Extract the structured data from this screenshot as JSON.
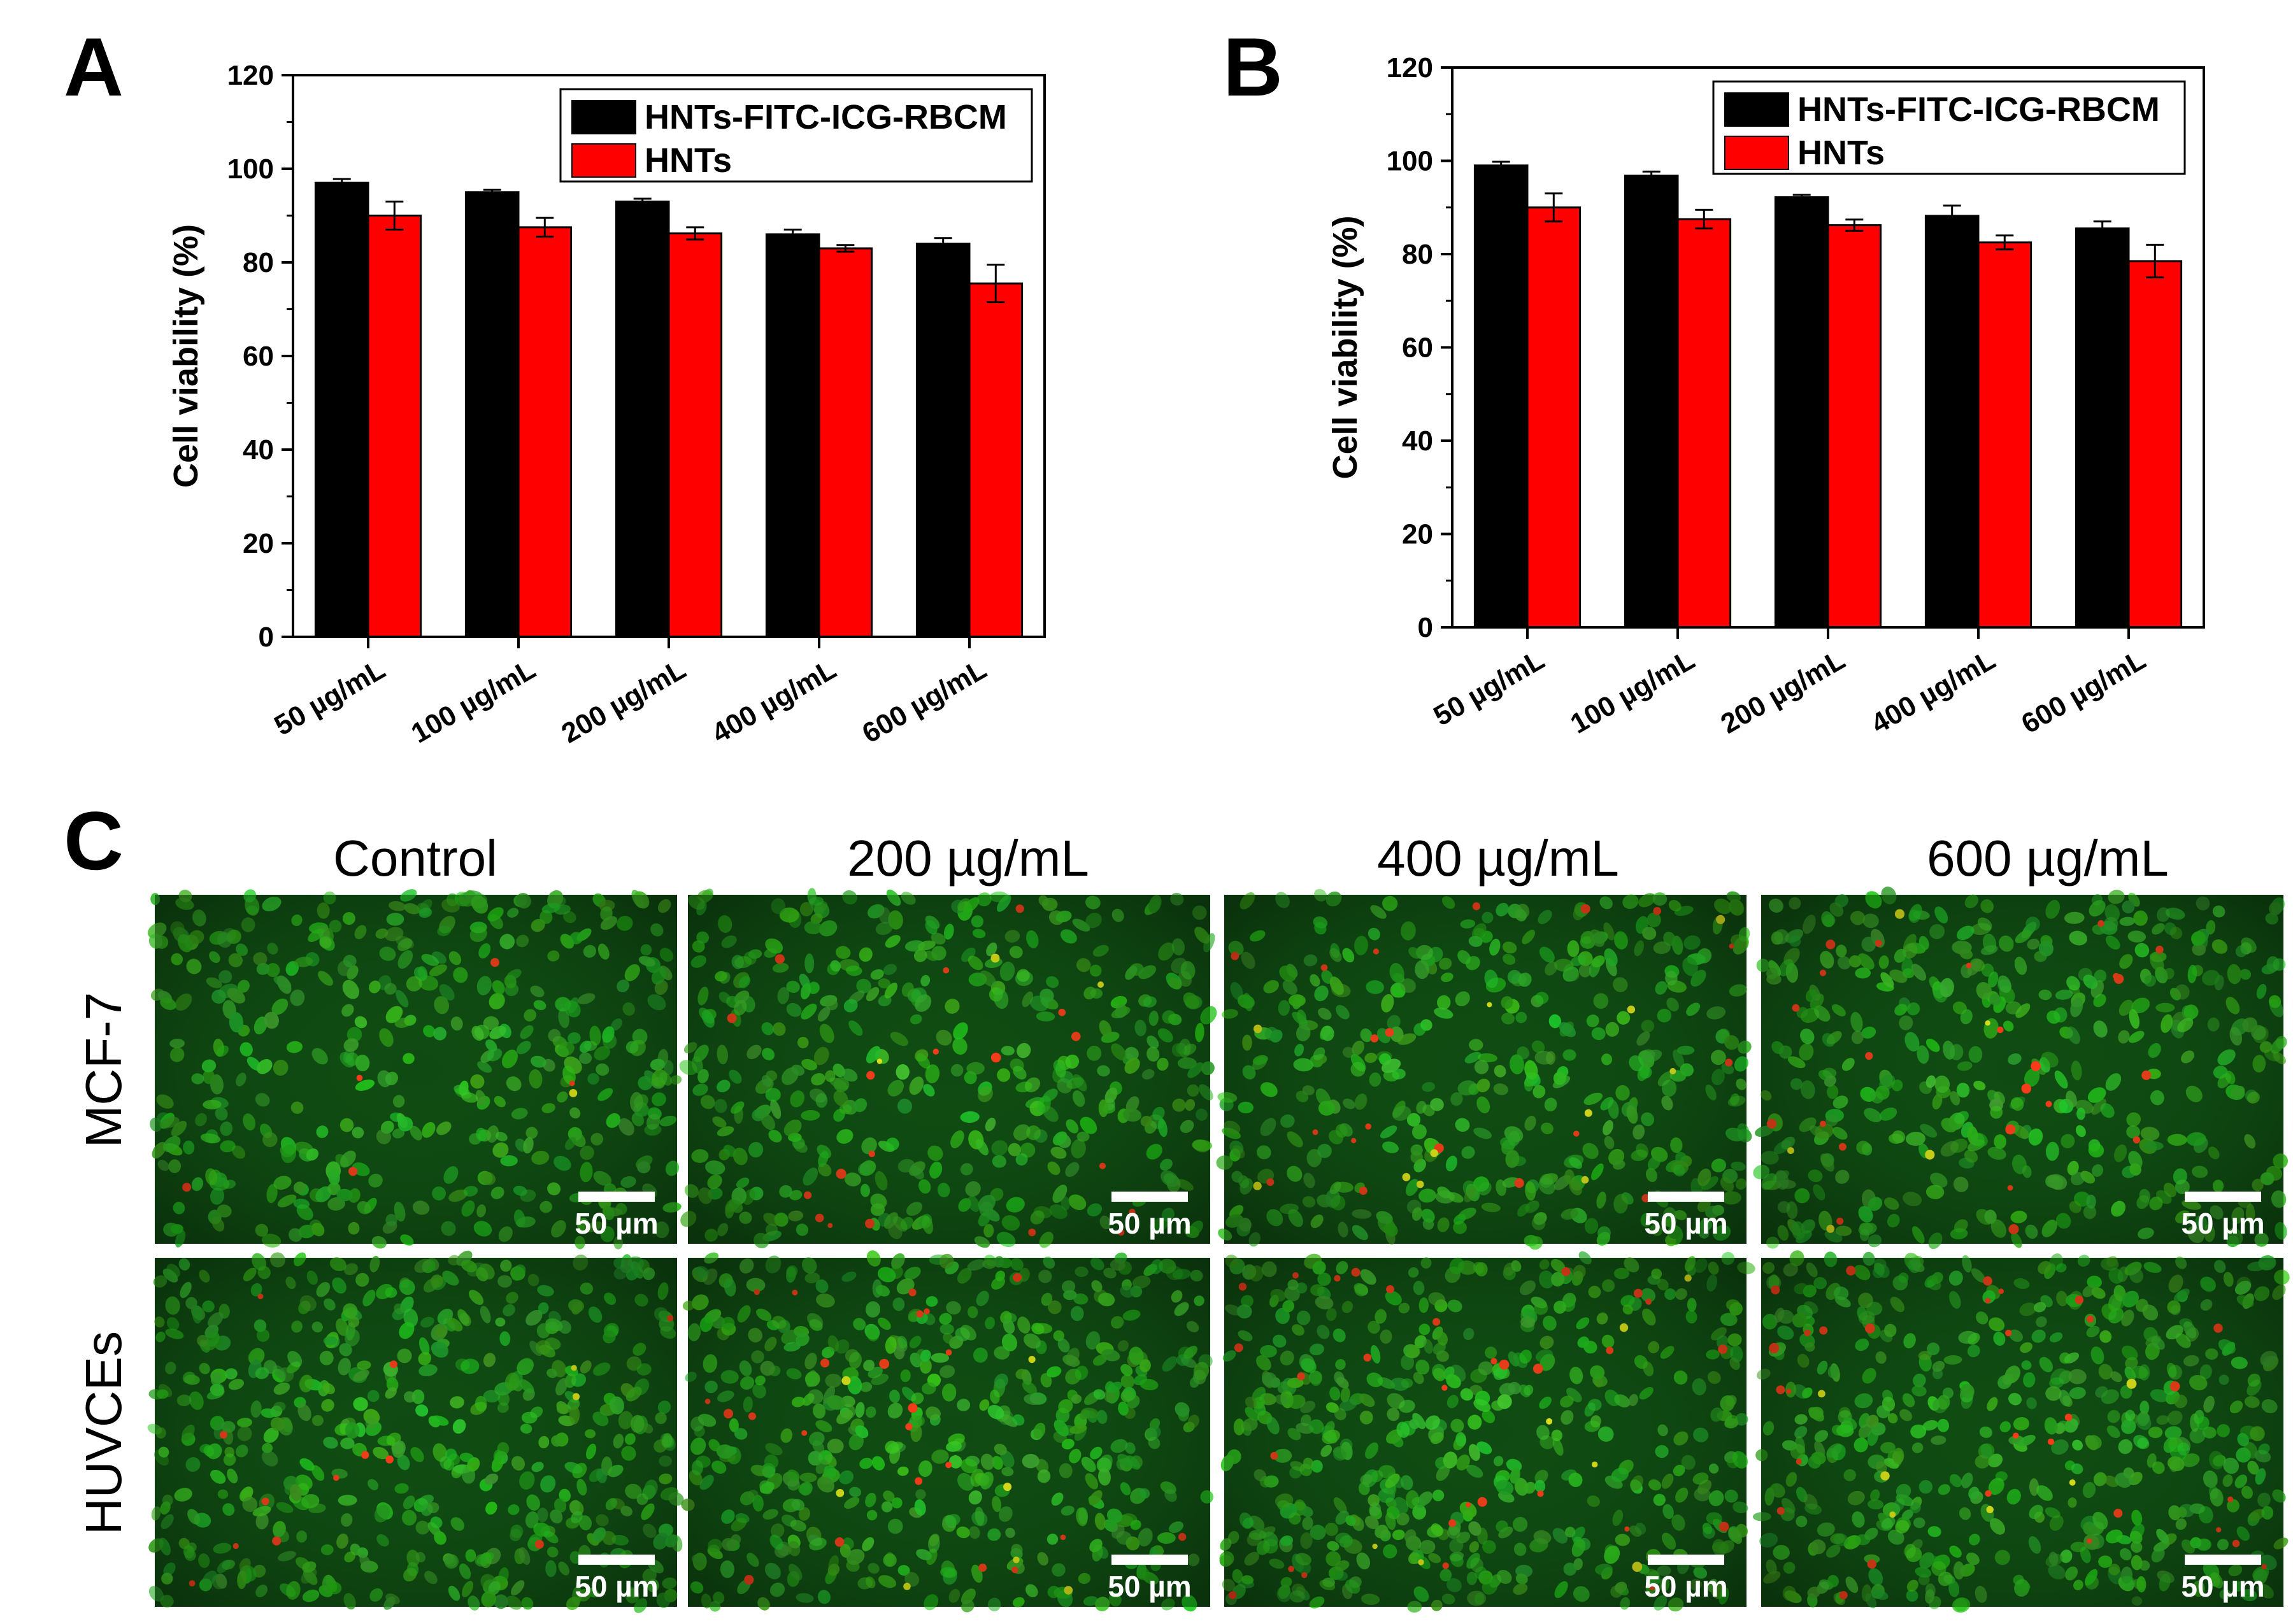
{
  "colors": {
    "series_black": "#000000",
    "series_red": "#ff0000",
    "micro_bg": "#0f4a12",
    "cell_green": "#2fbf2a",
    "cell_red": "#ff3a1a",
    "cell_yellow": "#e6e61a"
  },
  "chart_data": [
    {
      "panel": "A",
      "type": "bar",
      "title": "",
      "categories": [
        "50 µg/mL",
        "100 µg/mL",
        "200 µg/mL",
        "400 µg/mL",
        "600 µg/mL"
      ],
      "series": [
        {
          "name": "HNTs-FITC-ICG-RBCM",
          "values": [
            97,
            95,
            93,
            86,
            84
          ],
          "errors": [
            0.8,
            0.5,
            0.6,
            1.0,
            1.2
          ]
        },
        {
          "name": "HNTs",
          "values": [
            90,
            87.5,
            86.2,
            83,
            75.5
          ],
          "errors": [
            3.0,
            2.0,
            1.3,
            0.7,
            4.0
          ]
        }
      ],
      "xlabel": "",
      "ylabel": "Cell viability (%)",
      "ylim": [
        0,
        120
      ],
      "yticks": [
        "0",
        "20",
        "40",
        "60",
        "80",
        "100",
        "120"
      ],
      "legend": "top-right",
      "grid": false
    },
    {
      "panel": "B",
      "type": "bar",
      "title": "",
      "categories": [
        "50 µg/mL",
        "100 µg/mL",
        "200 µg/mL",
        "400 µg/mL",
        "600 µg/mL"
      ],
      "series": [
        {
          "name": "HNTs-FITC-ICG-RBCM",
          "values": [
            99,
            96.8,
            92.2,
            88.2,
            85.5
          ],
          "errors": [
            0.8,
            0.9,
            0.5,
            2.2,
            1.5
          ]
        },
        {
          "name": "HNTs",
          "values": [
            90,
            87.5,
            86.2,
            82.5,
            78.5
          ],
          "errors": [
            3.0,
            2.0,
            1.2,
            1.5,
            3.5
          ]
        }
      ],
      "xlabel": "",
      "ylabel": "Cell viability (%)",
      "ylim": [
        0,
        120
      ],
      "yticks": [
        "0",
        "20",
        "40",
        "60",
        "80",
        "100",
        "120"
      ],
      "legend": "top-right",
      "grid": false
    }
  ],
  "panel_c": {
    "letter": "C",
    "columns": [
      "Control",
      "200 µg/mL",
      "400 µg/mL",
      "600 µg/mL"
    ],
    "rows": [
      "MCF-7",
      "HUVCEs"
    ],
    "scale_bar": "50 µm"
  }
}
